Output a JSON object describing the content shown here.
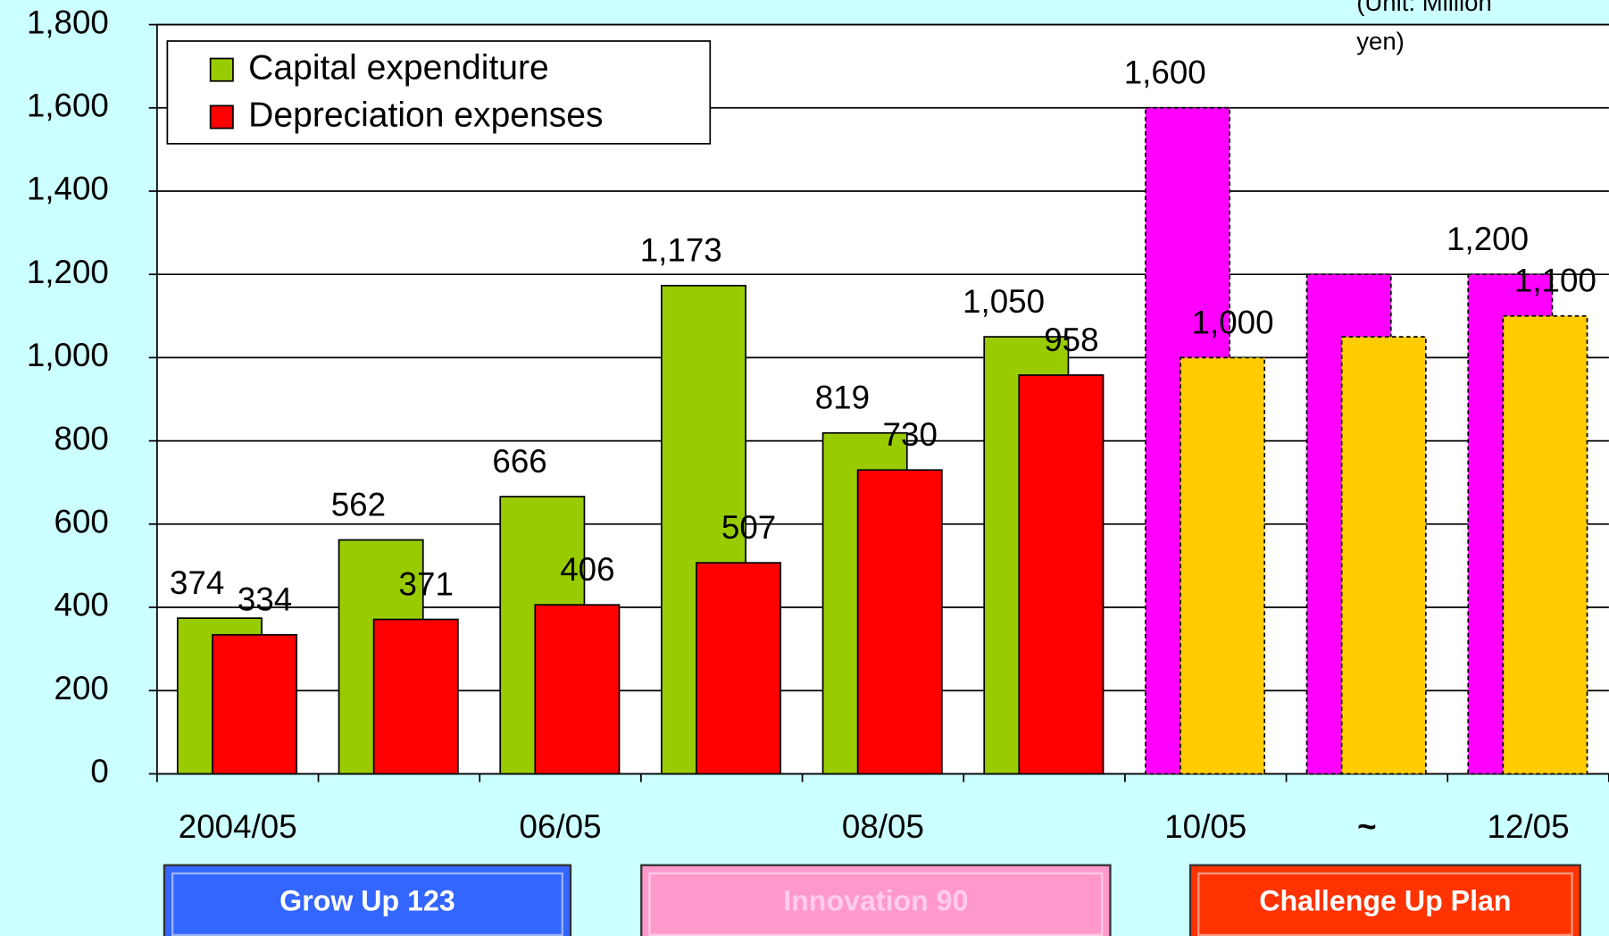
{
  "chart_data": {
    "type": "bar",
    "categories": [
      "2004/05",
      null,
      "06/05",
      null,
      "08/05",
      null,
      "10/05",
      "~",
      "12/05"
    ],
    "series": [
      {
        "name": "Capital expenditure",
        "color": "#99cc00",
        "colors": [
          "#99cc00",
          "#99cc00",
          "#99cc00",
          "#99cc00",
          "#99cc00",
          "#99cc00",
          "#ff00ff",
          "#ff00ff",
          "#ff00ff"
        ],
        "values": [
          374,
          562,
          666,
          1173,
          819,
          1050,
          1600,
          1200,
          1200
        ],
        "value_labels": [
          "374",
          "562",
          "666",
          "1,173",
          "819",
          "1,050",
          "1,600",
          null,
          "1,200"
        ]
      },
      {
        "name": "Depreciation expenses",
        "color": "#ff0000",
        "colors": [
          "#ff0000",
          "#ff0000",
          "#ff0000",
          "#ff0000",
          "#ff0000",
          "#ff0000",
          "#ffcc00",
          "#ffcc00",
          "#ffcc00"
        ],
        "values": [
          334,
          371,
          406,
          507,
          730,
          958,
          1000,
          1050,
          1100
        ],
        "value_labels": [
          "334",
          "371",
          "406",
          "507",
          "730",
          "958",
          "1,000",
          null,
          "1,100"
        ]
      }
    ],
    "forecast": [
      false,
      false,
      false,
      false,
      false,
      false,
      true,
      true,
      true
    ],
    "ylim": [
      0,
      1800
    ],
    "yticks": [
      0,
      200,
      400,
      600,
      800,
      {
        "value": 1000,
        "label": "1,000"
      },
      {
        "value": 1200,
        "label": "1,200"
      },
      {
        "value": 1400,
        "label": "1,400"
      },
      {
        "value": 1600,
        "label": "1,600"
      },
      {
        "value": 1800,
        "label": "1,800"
      }
    ],
    "grid": true,
    "legend": "top-left",
    "unit_note": [
      "(Unit: Million",
      "yen)"
    ],
    "phases": [
      {
        "label": "Grow Up 123",
        "color": "#3366ff",
        "text_color": "#ffffff"
      },
      {
        "label": "Innovation 90",
        "color": "#ff99cc",
        "text_color": "#ffccee"
      },
      {
        "label": "Challenge Up Plan",
        "color": "#ff3300",
        "text_color": "#ffffff"
      }
    ]
  }
}
